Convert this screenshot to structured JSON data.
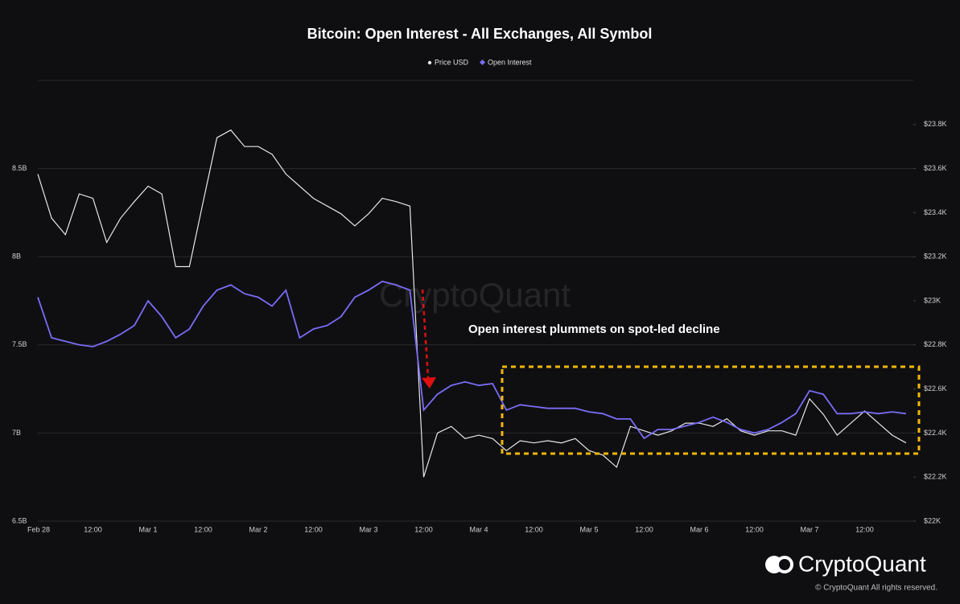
{
  "chart_data": {
    "type": "line",
    "title": "Bitcoin: Open Interest - All Exchanges, All Symbol",
    "annotation": "Open interest plummets on spot-led decline",
    "watermark": "CryptoQuant",
    "brand": "CryptoQuant",
    "copyright": "© CryptoQuant All rights reserved.",
    "categories": [
      "Feb 28",
      null,
      null,
      null,
      "12:00",
      null,
      null,
      null,
      "Mar 1",
      null,
      null,
      null,
      "12:00",
      null,
      null,
      null,
      "Mar 2",
      null,
      null,
      null,
      "12:00",
      null,
      null,
      null,
      "Mar 3",
      null,
      null,
      null,
      "12:00",
      null,
      null,
      null,
      "Mar 4",
      null,
      null,
      null,
      "12:00",
      null,
      null,
      null,
      "Mar 5",
      null,
      null,
      null,
      "12:00",
      null,
      null,
      null,
      "Mar 6",
      null,
      null,
      null,
      "12:00",
      null,
      null,
      null,
      "Mar 7",
      null,
      null,
      null,
      "12:00",
      null,
      null,
      null
    ],
    "series": [
      {
        "name": "Price USD",
        "color": "#e6e6e6",
        "axis": "y2",
        "values": [
          23575,
          23375,
          23300,
          23485,
          23465,
          23265,
          23375,
          23450,
          23520,
          23485,
          23155,
          23155,
          23450,
          23740,
          23775,
          23700,
          23700,
          23665,
          23575,
          23520,
          23465,
          23430,
          23395,
          23340,
          23395,
          23465,
          23450,
          23430,
          22200,
          22400,
          22430,
          22375,
          22390,
          22375,
          22320,
          22365,
          22355,
          22365,
          22355,
          22375,
          22320,
          22300,
          22245,
          22430,
          22410,
          22390,
          22410,
          22445,
          22445,
          22430,
          22465,
          22410,
          22390,
          22410,
          22410,
          22390,
          22555,
          22485,
          22390,
          22445,
          22500,
          22445,
          22390,
          22355
        ]
      },
      {
        "name": "Open Interest",
        "color": "#7b6cf6",
        "values": [
          7.77,
          7.54,
          7.52,
          7.5,
          7.49,
          7.52,
          7.56,
          7.61,
          7.75,
          7.66,
          7.54,
          7.59,
          7.72,
          7.81,
          7.84,
          7.79,
          7.77,
          7.72,
          7.81,
          7.54,
          7.59,
          7.61,
          7.66,
          7.77,
          7.81,
          7.86,
          7.84,
          7.81,
          7.13,
          7.22,
          7.27,
          7.29,
          7.27,
          7.28,
          7.13,
          7.16,
          7.15,
          7.14,
          7.14,
          7.14,
          7.12,
          7.11,
          7.08,
          7.08,
          6.97,
          7.02,
          7.02,
          7.04,
          7.06,
          7.09,
          7.06,
          7.02,
          7.0,
          7.02,
          7.06,
          7.11,
          7.24,
          7.22,
          7.11,
          7.11,
          7.12,
          7.11,
          7.12,
          7.11
        ]
      }
    ],
    "ylim": [
      6.5,
      9
    ],
    "yticks": [
      {
        "value": 6.5,
        "label": "6.5B"
      },
      {
        "value": 7,
        "label": "7B"
      },
      {
        "value": 7.5,
        "label": "7.5B"
      },
      {
        "value": 8,
        "label": "8B"
      },
      {
        "value": 8.5,
        "label": "8.5B"
      }
    ],
    "y2lim": [
      22000,
      24000
    ],
    "y2ticks": [
      {
        "value": 22000,
        "label": "$22K"
      },
      {
        "value": 22200,
        "label": "$22.2K"
      },
      {
        "value": 22400,
        "label": "$22.4K"
      },
      {
        "value": 22600,
        "label": "$22.6K"
      },
      {
        "value": 22800,
        "label": "$22.8K"
      },
      {
        "value": 23000,
        "label": "$23K"
      },
      {
        "value": 23200,
        "label": "$23.2K"
      },
      {
        "value": 23400,
        "label": "$23.4K"
      },
      {
        "value": 23600,
        "label": "$23.6K"
      },
      {
        "value": 23800,
        "label": "$23.8K"
      }
    ],
    "grid": true
  }
}
